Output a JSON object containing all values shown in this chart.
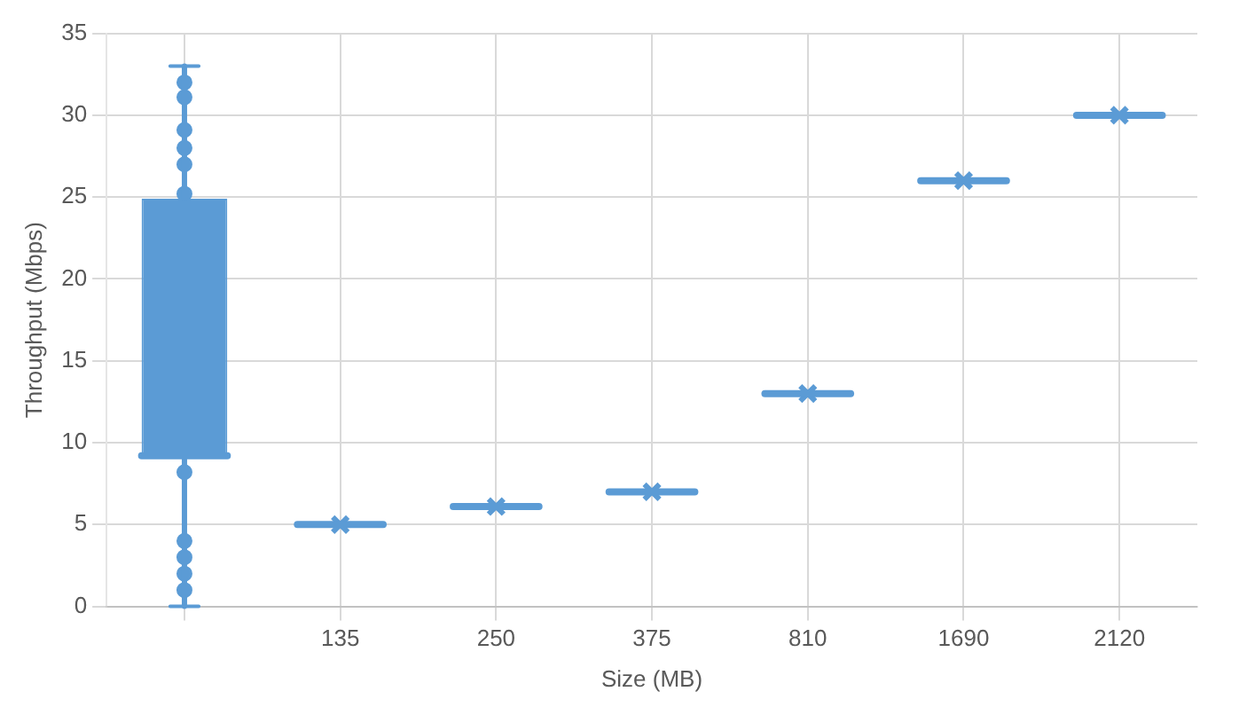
{
  "chart_data": {
    "type": "box",
    "xlabel": "Size (MB)",
    "ylabel": "Throughput (Mbps)",
    "categories": [
      null,
      "135",
      "250",
      "375",
      "810",
      "1690",
      "2120"
    ],
    "color": "#5b9bd5",
    "boxes": [
      {
        "low": 0,
        "q1": 9.2,
        "median": 9.2,
        "q3": 24.9,
        "high": 33,
        "outliers": [
          1,
          2,
          3,
          4,
          8.2,
          25.2,
          27,
          28,
          29.1,
          31.1,
          32
        ]
      },
      {
        "low": 5,
        "q1": 5,
        "median": 5,
        "q3": 5,
        "high": 5,
        "mean": 5
      },
      {
        "low": 6.1,
        "q1": 6.1,
        "median": 6.1,
        "q3": 6.1,
        "high": 6.1,
        "mean": 6.1
      },
      {
        "low": 7,
        "q1": 7,
        "median": 7,
        "q3": 7,
        "high": 7,
        "mean": 7
      },
      {
        "low": 13,
        "q1": 13,
        "median": 13,
        "q3": 13,
        "high": 13,
        "mean": 13
      },
      {
        "low": 26,
        "q1": 26,
        "median": 26,
        "q3": 26,
        "high": 26,
        "mean": 26
      },
      {
        "low": 30,
        "q1": 30,
        "median": 30,
        "q3": 30,
        "high": 30,
        "mean": 30
      }
    ],
    "ylim": [
      0,
      35
    ],
    "yticks": [
      0,
      5,
      10,
      15,
      20,
      25,
      30,
      35
    ],
    "grid": true
  }
}
